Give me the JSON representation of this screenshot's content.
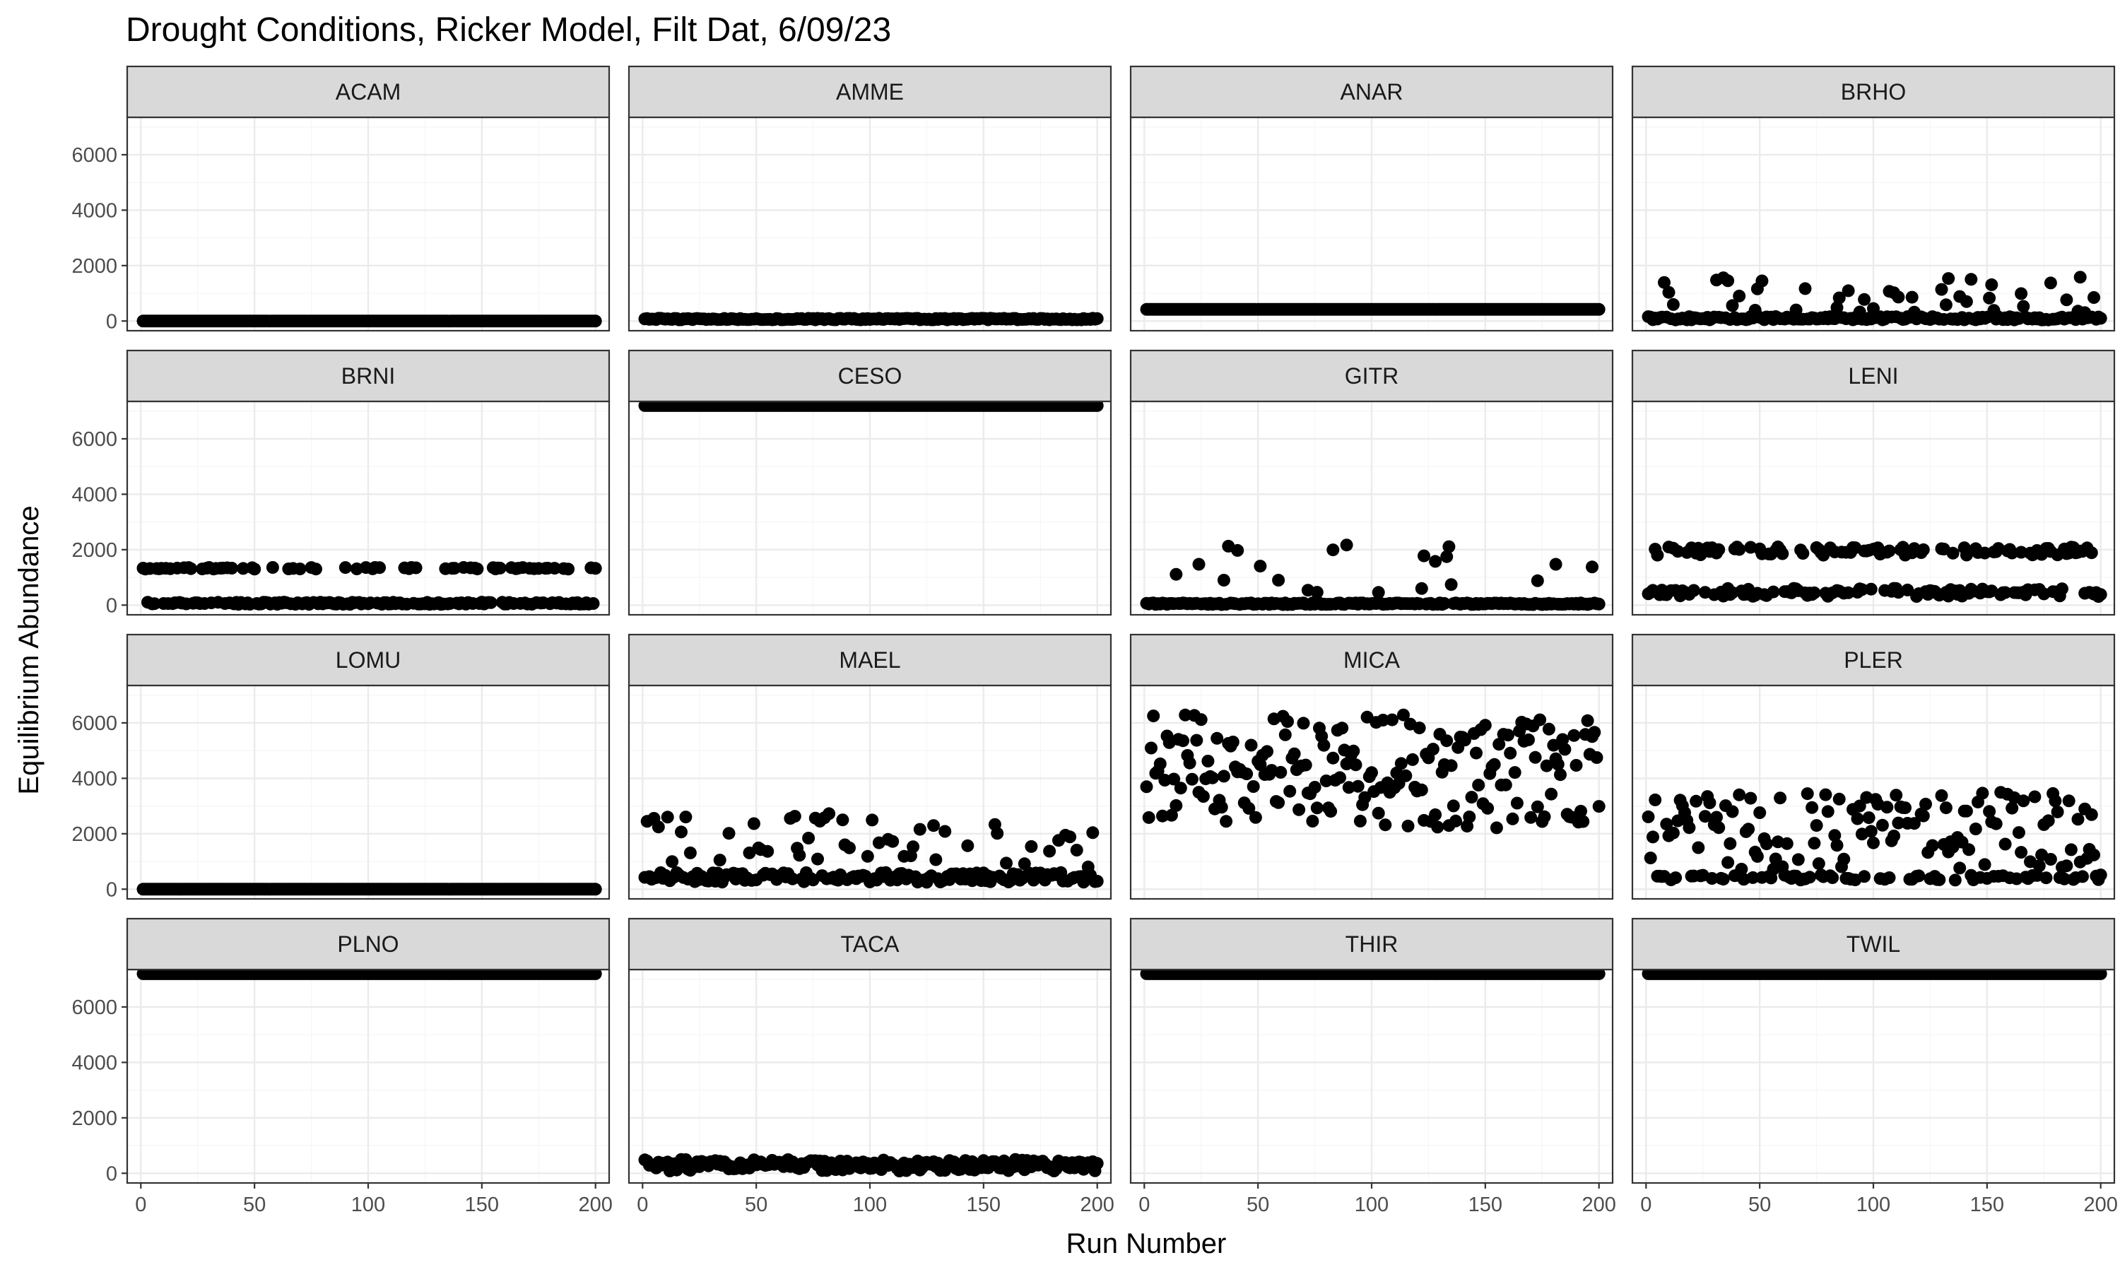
{
  "chart_data": {
    "type": "scatter",
    "title": "Drought Conditions, Ricker Model, Filt Dat, 6/09/23",
    "xlabel": "Run Number",
    "ylabel": "Equilibrium Abundance",
    "xlim": [
      -6,
      206
    ],
    "ylim": [
      -350,
      7350
    ],
    "xticks": [
      0,
      50,
      100,
      150,
      200
    ],
    "yticks": [
      0,
      2000,
      4000,
      6000
    ],
    "grid": true,
    "layout": {
      "rows": 4,
      "cols": 4
    },
    "n_runs": 200,
    "panels": [
      {
        "name": "ACAM",
        "pattern": "flat",
        "level": 0
      },
      {
        "name": "AMME",
        "pattern": "lowband",
        "level": 40,
        "spread": 60
      },
      {
        "name": "ANAR",
        "pattern": "flat",
        "level": 420
      },
      {
        "name": "BRHO",
        "pattern": "mixed",
        "base": 40,
        "baseSpread": 120,
        "highFrac": 0.22,
        "highMin": 300,
        "highMax": 1700
      },
      {
        "name": "BRNI",
        "pattern": "bimodal",
        "low": 50,
        "lowSpread": 80,
        "high": 1330,
        "highSpread": 60,
        "highFrac": 0.33
      },
      {
        "name": "CESO",
        "pattern": "flat",
        "level": 7200
      },
      {
        "name": "GITR",
        "pattern": "mixed",
        "base": 20,
        "baseSpread": 60,
        "highFrac": 0.12,
        "highMin": 300,
        "highMax": 2200
      },
      {
        "name": "LENI",
        "pattern": "bimodal",
        "low": 400,
        "lowSpread": 300,
        "high": 1950,
        "highSpread": 300,
        "highFrac": 0.45
      },
      {
        "name": "LOMU",
        "pattern": "flat",
        "level": 0
      },
      {
        "name": "MAEL",
        "pattern": "mixed",
        "base": 250,
        "baseSpread": 350,
        "highFrac": 0.3,
        "highMin": 800,
        "highMax": 2800
      },
      {
        "name": "MICA",
        "pattern": "band",
        "min": 2200,
        "max": 6300
      },
      {
        "name": "PLER",
        "pattern": "mixed",
        "base": 320,
        "baseSpread": 200,
        "highFrac": 0.6,
        "highMin": 700,
        "highMax": 3500
      },
      {
        "name": "PLNO",
        "pattern": "flat",
        "level": 7200
      },
      {
        "name": "TACA",
        "pattern": "lowband",
        "level": 80,
        "spread": 420
      },
      {
        "name": "THIR",
        "pattern": "flat",
        "level": 7200
      },
      {
        "name": "TWIL",
        "pattern": "flat",
        "level": 7200
      }
    ]
  },
  "colors": {
    "strip_fill": "#d9d9d9",
    "border": "#333333",
    "grid_major": "#ebebeb",
    "grid_minor": "#f5f5f5",
    "point": "#000000"
  }
}
